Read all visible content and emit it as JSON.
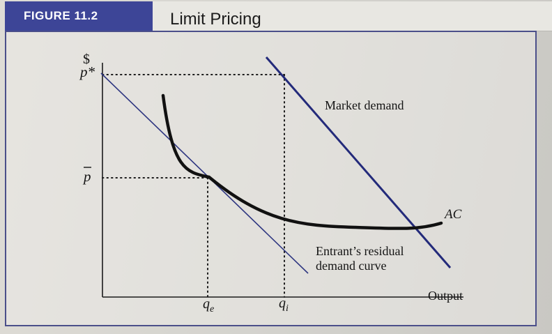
{
  "figure": {
    "label": "FIGURE 11.2",
    "title": "Limit Pricing",
    "colors": {
      "label_bg": "#3d4597",
      "demand_line": "#232a7a",
      "residual_line": "#2d3580",
      "ac_curve": "#111111"
    }
  },
  "axes": {
    "y_label": "$",
    "x_label": "Output",
    "y_ticks": {
      "p_star": "p*",
      "p_bar": "p"
    },
    "x_ticks": {
      "q_e_main": "q",
      "q_e_sub": "e",
      "q_i_main": "q",
      "q_i_sub": "i"
    }
  },
  "curves": {
    "market_demand": "Market demand",
    "ac": "AC",
    "residual_line1": "Entrant’s residual",
    "residual_line2": "demand curve"
  }
}
